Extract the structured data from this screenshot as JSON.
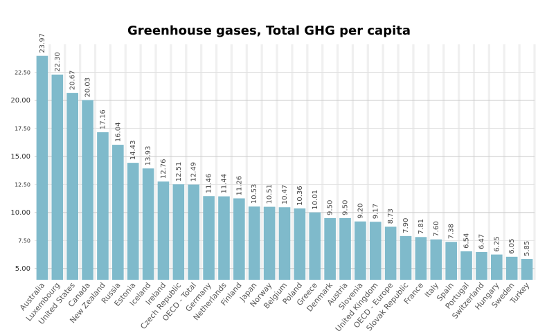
{
  "chart_data": {
    "type": "bar",
    "title": "Greenhouse gases, Total GHG per capita",
    "xlabel": "",
    "ylabel": "",
    "ylim": [
      4,
      25
    ],
    "y_ticks_major": [
      "5.00",
      "10.00",
      "15.00",
      "20.00"
    ],
    "y_ticks_minor": [
      "7.50",
      "12.50",
      "17.50",
      "22.50"
    ],
    "grid": true,
    "bar_color": "#7fbacb",
    "band_color": "#f0f0f0",
    "categories": [
      "Australia",
      "Luxembourg",
      "United States",
      "Canada",
      "New Zealand",
      "Russia",
      "Estonia",
      "Iceland",
      "Ireland",
      "Czech Republic",
      "OECD - Total",
      "Germany",
      "Netherlands",
      "Finland",
      "Japan",
      "Norway",
      "Belgium",
      "Poland",
      "Greece",
      "Denmark",
      "Austria",
      "Slovenia",
      "United Kingdom",
      "OECD - Europe",
      "Slovak Republic",
      "France",
      "Italy",
      "Spain",
      "Portugal",
      "Switzerland",
      "Hungary",
      "Sweden",
      "Turkey"
    ],
    "values": [
      23.97,
      22.3,
      20.67,
      20.03,
      17.16,
      16.04,
      14.43,
      13.93,
      12.76,
      12.51,
      12.49,
      11.46,
      11.44,
      11.26,
      10.53,
      10.51,
      10.47,
      10.36,
      10.01,
      9.5,
      9.5,
      9.2,
      9.17,
      8.73,
      7.9,
      7.81,
      7.6,
      7.38,
      6.54,
      6.47,
      6.25,
      6.05,
      5.85
    ],
    "value_labels": [
      "23.97",
      "22.30",
      "20.67",
      "20.03",
      "17.16",
      "16.04",
      "14.43",
      "13.93",
      "12.76",
      "12.51",
      "12.49",
      "11.46",
      "11.44",
      "11.26",
      "10.53",
      "10.51",
      "10.47",
      "10.36",
      "10.01",
      "9.50",
      "9.50",
      "9.20",
      "9.17",
      "8.73",
      "7.90",
      "7.81",
      "7.60",
      "7.38",
      "6.54",
      "6.47",
      "6.25",
      "6.05",
      "5.85"
    ]
  }
}
